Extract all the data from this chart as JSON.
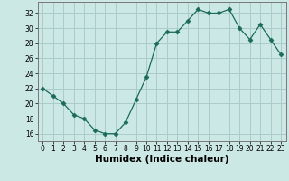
{
  "x": [
    0,
    1,
    2,
    3,
    4,
    5,
    6,
    7,
    8,
    9,
    10,
    11,
    12,
    13,
    14,
    15,
    16,
    17,
    18,
    19,
    20,
    21,
    22,
    23
  ],
  "y": [
    22,
    21,
    20,
    18.5,
    18,
    16.5,
    16,
    16,
    17.5,
    20.5,
    23.5,
    28,
    29.5,
    29.5,
    31,
    32.5,
    32,
    32,
    32.5,
    30,
    28.5,
    30.5,
    28.5,
    26.5
  ],
  "line_color": "#1a6b5a",
  "marker": "D",
  "marker_size": 2.5,
  "bg_color": "#cce8e4",
  "grid_color": "#aaccca",
  "xlabel": "Humidex (Indice chaleur)",
  "xlim": [
    -0.5,
    23.5
  ],
  "ylim": [
    15,
    33.5
  ],
  "yticks": [
    16,
    18,
    20,
    22,
    24,
    26,
    28,
    30,
    32
  ],
  "xticks": [
    0,
    1,
    2,
    3,
    4,
    5,
    6,
    7,
    8,
    9,
    10,
    11,
    12,
    13,
    14,
    15,
    16,
    17,
    18,
    19,
    20,
    21,
    22,
    23
  ],
  "xtick_labels": [
    "0",
    "1",
    "2",
    "3",
    "4",
    "5",
    "6",
    "7",
    "8",
    "9",
    "10",
    "11",
    "12",
    "13",
    "14",
    "15",
    "16",
    "17",
    "18",
    "19",
    "20",
    "21",
    "22",
    "23"
  ],
  "label_fontsize": 7.5,
  "tick_fontsize": 5.5
}
